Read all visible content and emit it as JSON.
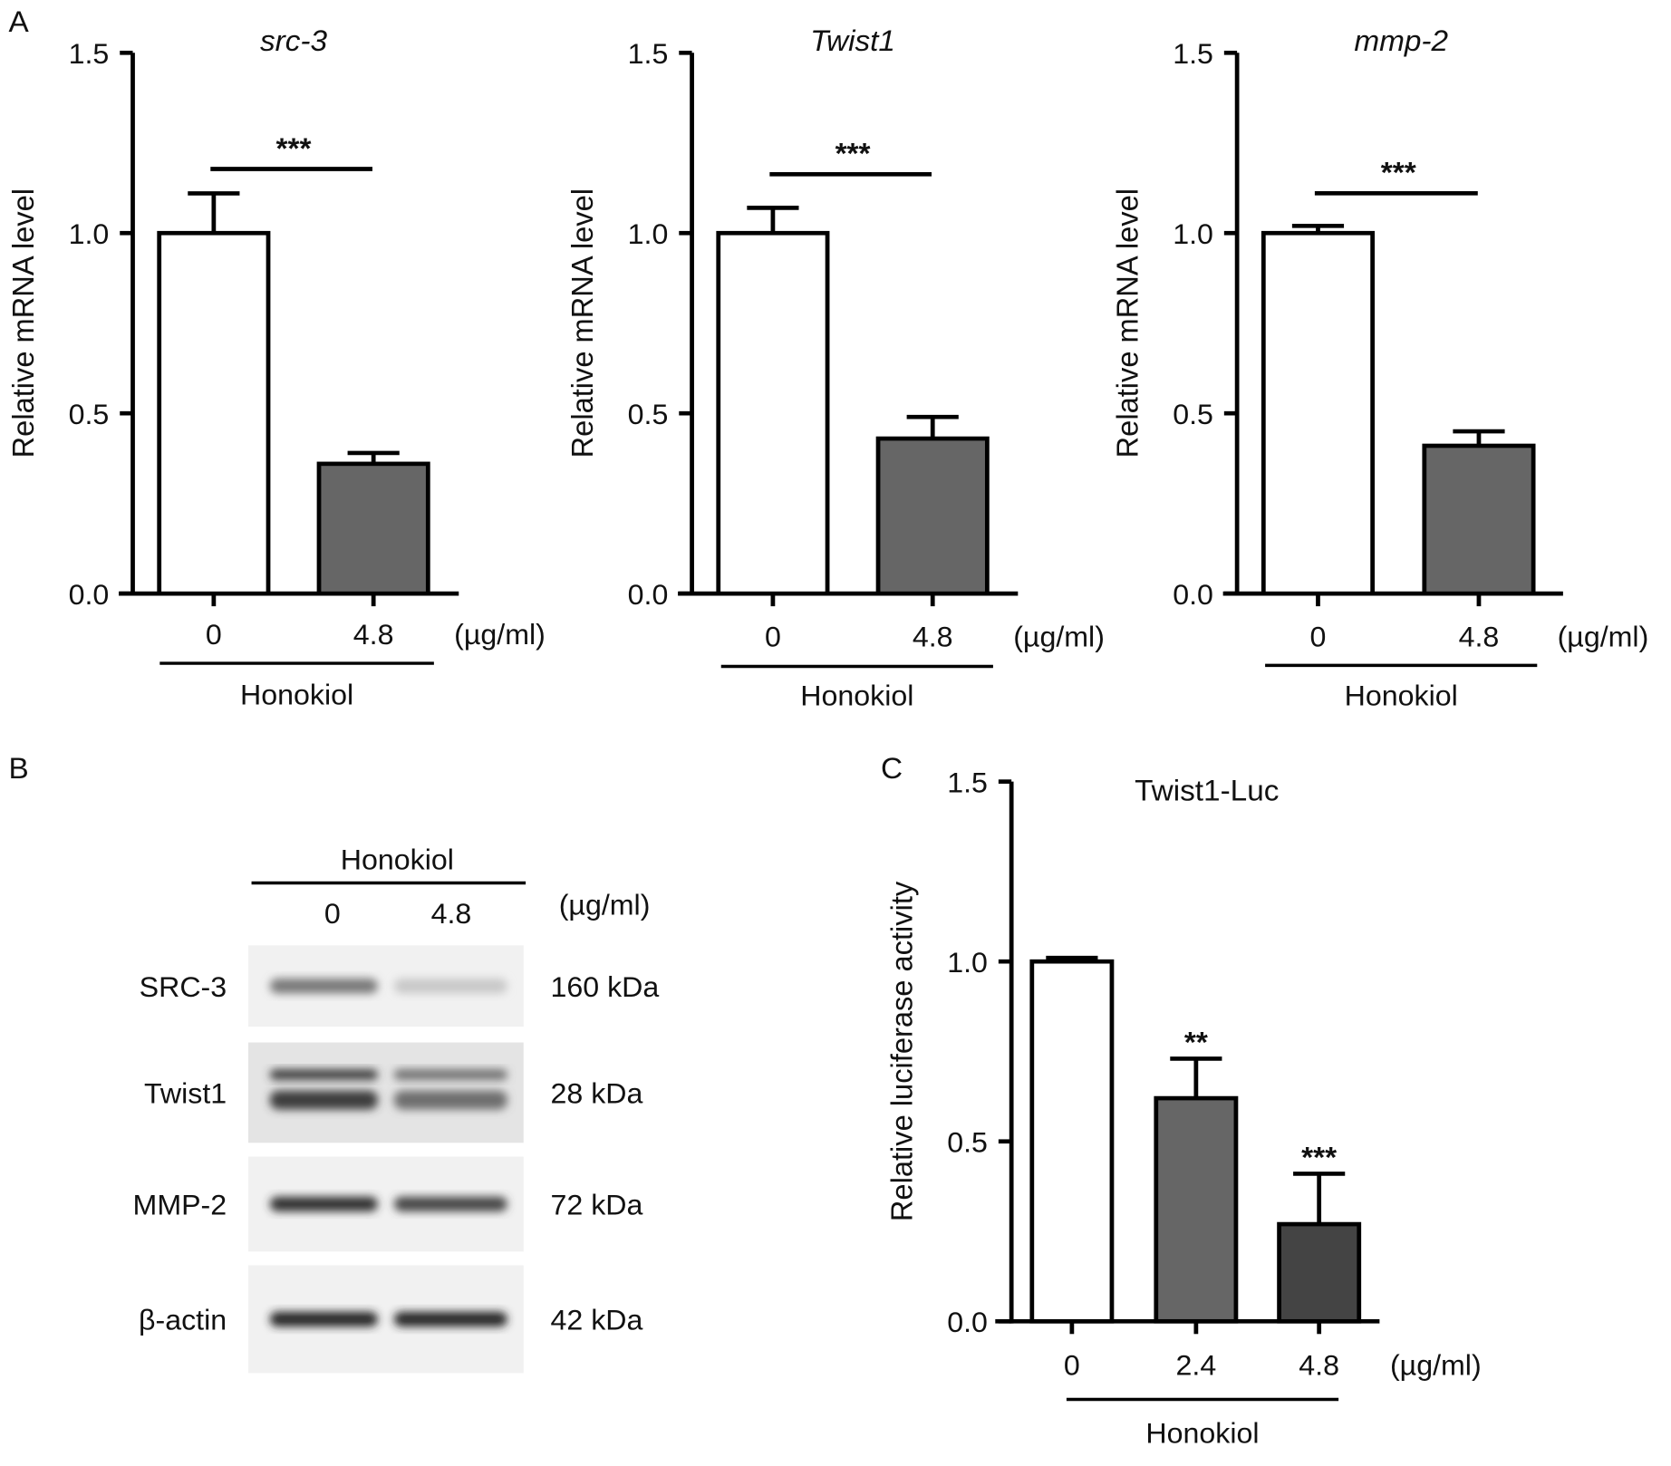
{
  "panel_labels": {
    "a": "A",
    "b": "B",
    "c": "C"
  },
  "chart_data": [
    {
      "type": "bar",
      "panel": "A",
      "title": "src-3",
      "title_italic": true,
      "ylabel": "Relative mRNA level",
      "ylim": [
        0,
        1.5
      ],
      "yticks": [
        "0.0",
        "0.5",
        "1.0",
        "1.5"
      ],
      "categories": [
        "0",
        "4.8"
      ],
      "unit": "(µg/ml)",
      "group_label": "Honokiol",
      "values": [
        1.0,
        0.36
      ],
      "error_upper": [
        0.11,
        0.03
      ],
      "fills": [
        "#ffffff",
        "#666666"
      ],
      "significance": {
        "type": "bracket",
        "label": "***"
      }
    },
    {
      "type": "bar",
      "panel": "A",
      "title": "Twist1",
      "title_italic": true,
      "ylabel": "Relative mRNA level",
      "ylim": [
        0,
        1.5
      ],
      "yticks": [
        "0.0",
        "0.5",
        "1.0",
        "1.5"
      ],
      "categories": [
        "0",
        "4.8"
      ],
      "unit": "(µg/ml)",
      "group_label": "Honokiol",
      "values": [
        1.0,
        0.43
      ],
      "error_upper": [
        0.07,
        0.06
      ],
      "fills": [
        "#ffffff",
        "#666666"
      ],
      "significance": {
        "type": "bracket",
        "label": "***"
      }
    },
    {
      "type": "bar",
      "panel": "A",
      "title": "mmp-2",
      "title_italic": true,
      "ylabel": "Relative mRNA level",
      "ylim": [
        0,
        1.5
      ],
      "yticks": [
        "0.0",
        "0.5",
        "1.0",
        "1.5"
      ],
      "categories": [
        "0",
        "4.8"
      ],
      "unit": "(µg/ml)",
      "group_label": "Honokiol",
      "values": [
        1.0,
        0.41
      ],
      "error_upper": [
        0.02,
        0.04
      ],
      "fills": [
        "#ffffff",
        "#666666"
      ],
      "significance": {
        "type": "bracket",
        "label": "***"
      }
    },
    {
      "type": "bar",
      "panel": "C",
      "title": "Twist1-Luc",
      "title_italic": false,
      "ylabel": "Relative luciferase activity",
      "ylim": [
        0,
        1.5
      ],
      "yticks": [
        "0.0",
        "0.5",
        "1.0",
        "1.5"
      ],
      "categories": [
        "0",
        "2.4",
        "4.8"
      ],
      "unit": "(µg/ml)",
      "group_label": "Honokiol",
      "values": [
        1.0,
        0.62,
        0.27
      ],
      "error_upper": [
        0.01,
        0.11,
        0.14
      ],
      "fills": [
        "#ffffff",
        "#666666",
        "#444444"
      ],
      "significance": {
        "type": "per-bar",
        "labels": [
          "",
          "**",
          "***"
        ]
      }
    }
  ],
  "western_blot": {
    "treatment": "Honokiol",
    "doses": [
      "0",
      "4.8"
    ],
    "unit": "(µg/ml)",
    "rows": [
      {
        "protein": "SRC-3",
        "size": "160 kDa",
        "intensity": [
          0.55,
          0.15
        ]
      },
      {
        "protein": "Twist1",
        "size": "28 kDa",
        "intensity": [
          0.85,
          0.6
        ]
      },
      {
        "protein": "MMP-2",
        "size": "72 kDa",
        "intensity": [
          0.9,
          0.8
        ]
      },
      {
        "protein": "β-actin",
        "size": "42 kDa",
        "intensity": [
          0.95,
          0.95
        ]
      }
    ]
  }
}
